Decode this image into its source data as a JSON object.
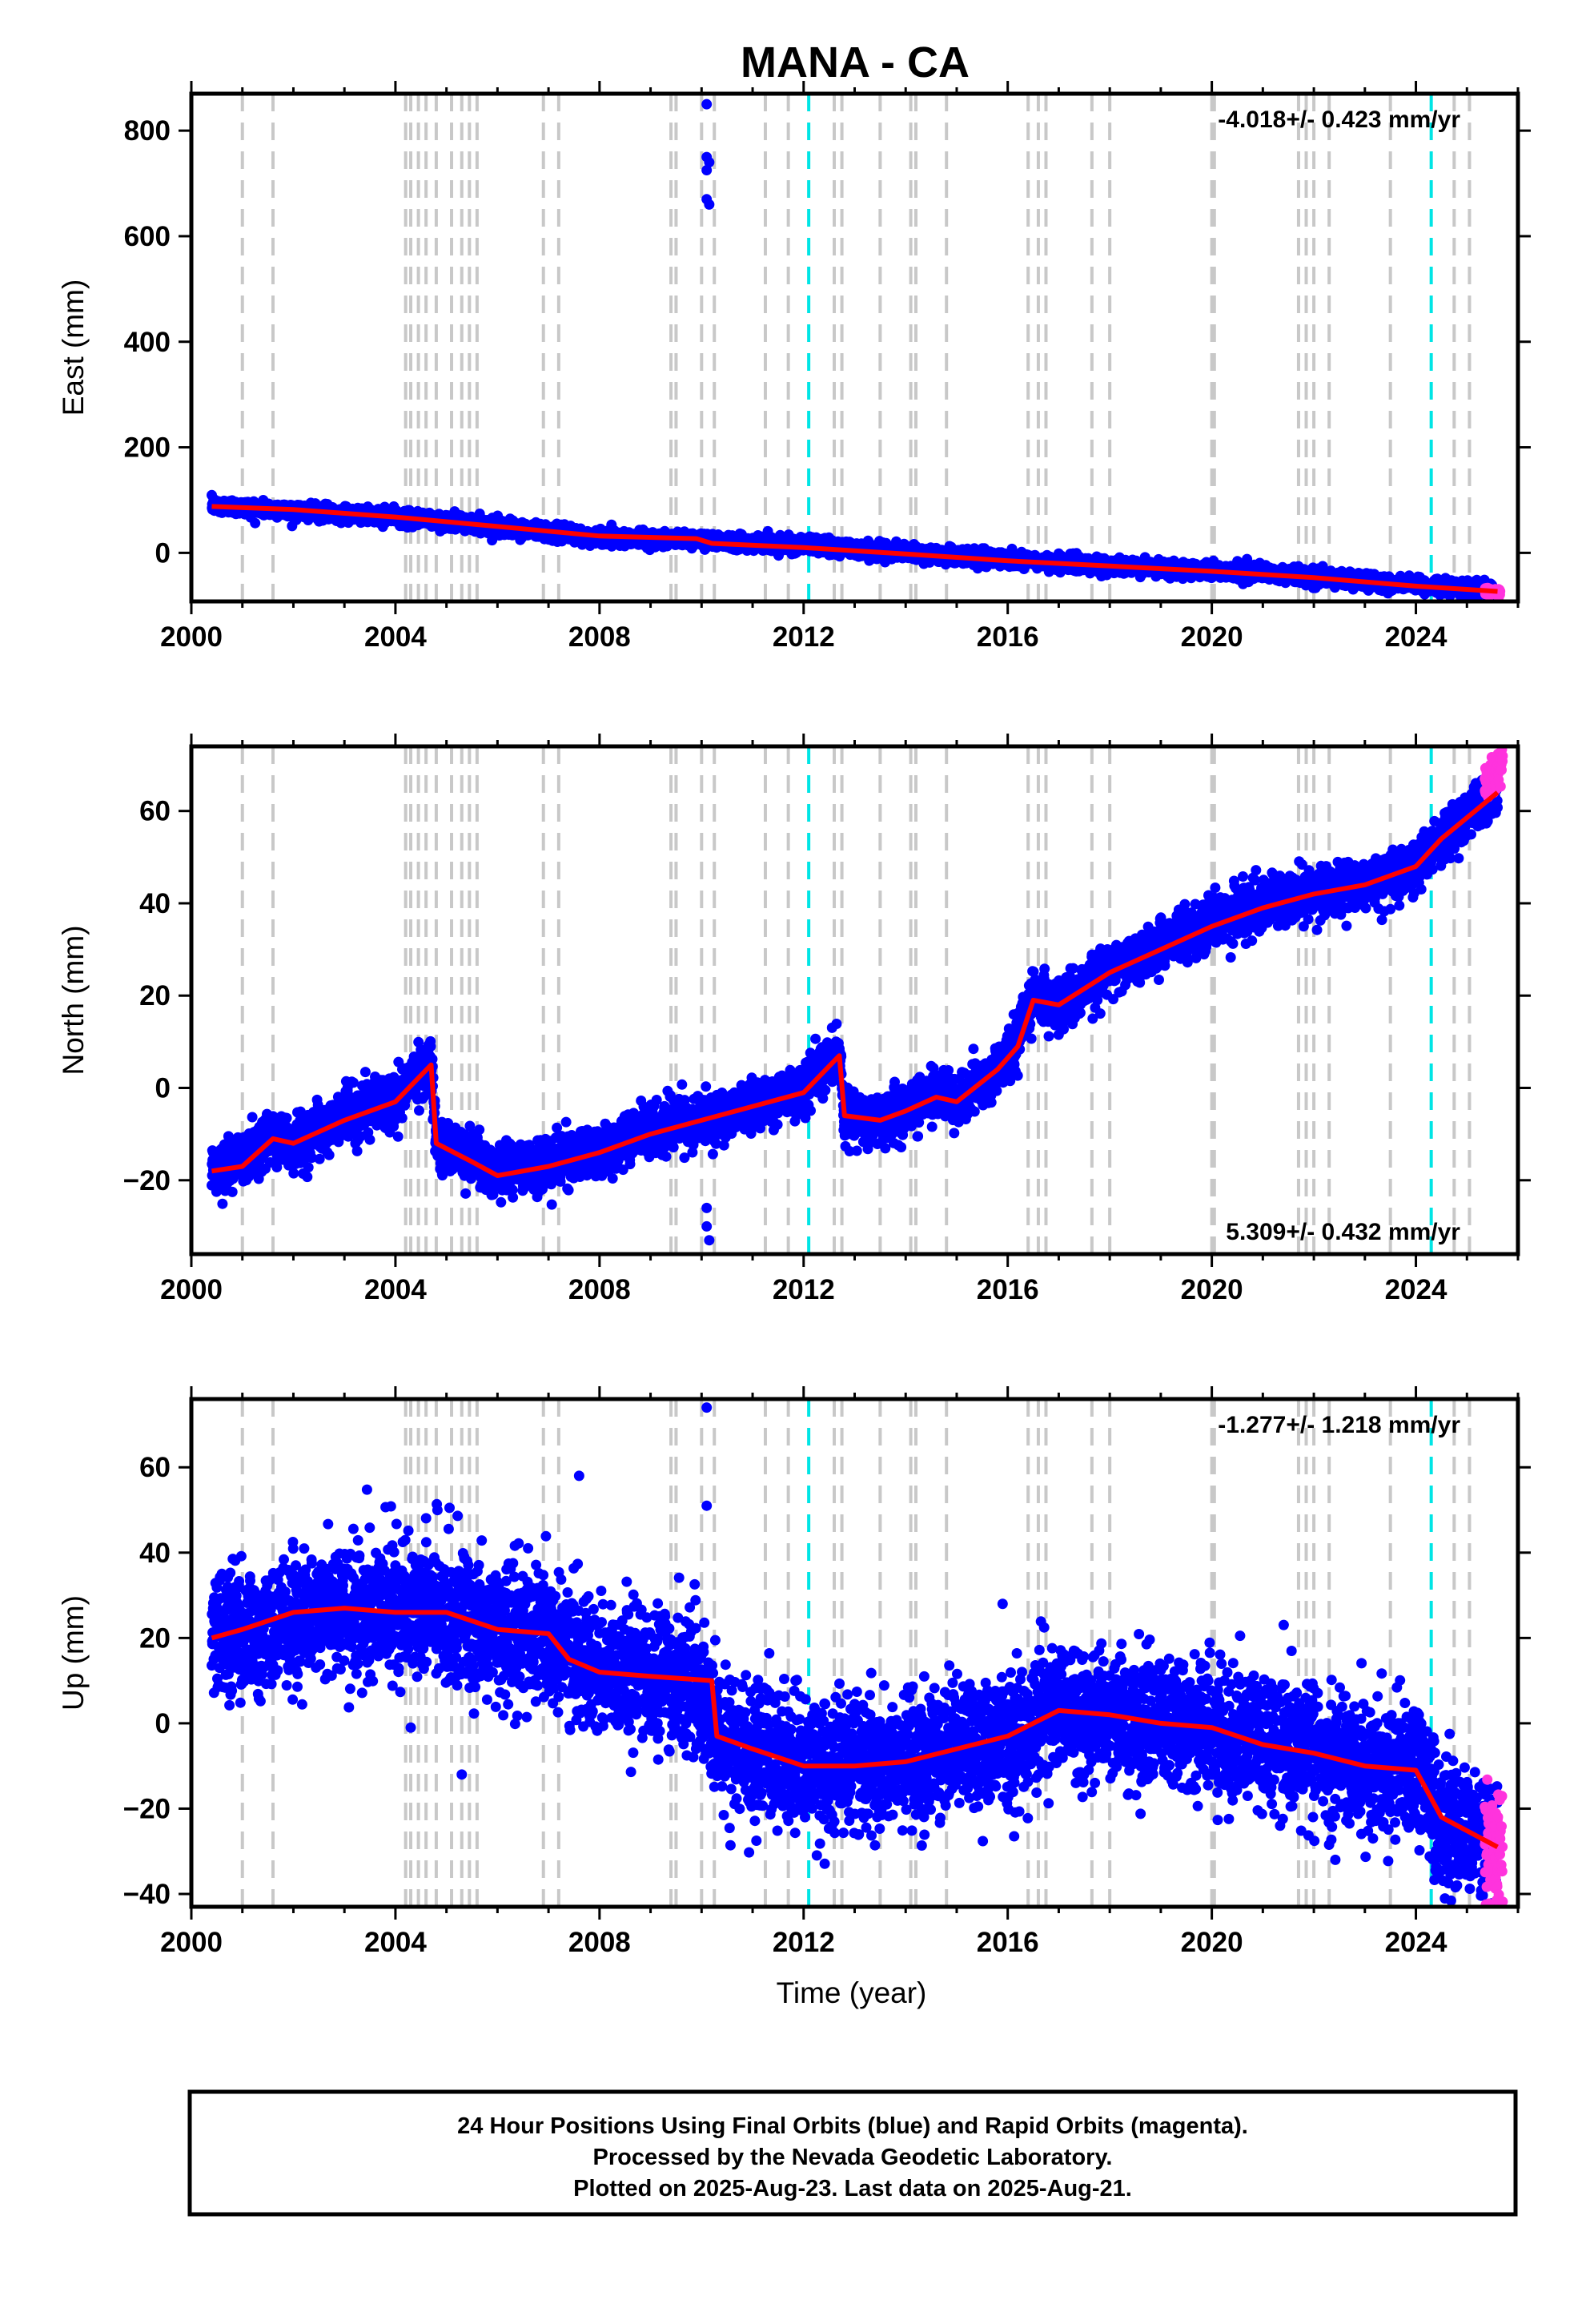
{
  "title": "MANA - CA",
  "footer": {
    "lines": [
      "24 Hour Positions Using Final Orbits (blue) and Rapid Orbits (magenta).",
      "Processed by the Nevada Geodetic Laboratory.",
      "Plotted on 2025-Aug-23. Last data on 2025-Aug-21."
    ]
  },
  "colors": {
    "final_orbits": "#0000ff",
    "rapid_orbits": "#ff33dd",
    "model": "#ff0000",
    "equipment_event": "#c8c8c8",
    "earthquake_event": "#00e5e5"
  },
  "chart_data": [
    {
      "type": "scatter",
      "component": "east",
      "ylabel": "East (mm)",
      "xlabel": "",
      "xlim": [
        2000,
        2026
      ],
      "ylim": [
        -92,
        870
      ],
      "x_ticks": [
        2000,
        2004,
        2008,
        2012,
        2016,
        2020,
        2024
      ],
      "y_ticks": [
        0,
        200,
        400,
        600,
        800
      ],
      "rate_label": "-4.018+/- 0.423 mm/yr",
      "rate_position": "top-right",
      "grid": false,
      "series": [
        {
          "kind": "points",
          "color": "final_orbits",
          "x": [
            2000.4,
            2002,
            2004,
            2006,
            2008,
            2010,
            2012,
            2014,
            2016,
            2018,
            2020,
            2022,
            2024,
            2025.5
          ],
          "y": [
            90,
            80,
            68,
            50,
            30,
            25,
            15,
            0,
            -12,
            -25,
            -33,
            -45,
            -62,
            -72
          ],
          "scatter_sd": 7,
          "outliers": [
            {
              "x": 2010.1,
              "y": 850
            },
            {
              "x": 2010.1,
              "y": 750
            },
            {
              "x": 2010.15,
              "y": 740
            },
            {
              "x": 2010.1,
              "y": 725
            },
            {
              "x": 2010.1,
              "y": 670
            },
            {
              "x": 2010.15,
              "y": 660
            }
          ]
        },
        {
          "kind": "points",
          "color": "rapid_orbits",
          "x": [
            2025.35,
            2025.65
          ],
          "y": [
            -72,
            -74
          ],
          "scatter_sd": 3
        },
        {
          "kind": "line",
          "color": "model",
          "x": [
            2000.4,
            2002,
            2004,
            2006,
            2008,
            2009.9,
            2010.2,
            2012,
            2014,
            2016,
            2018,
            2020,
            2022,
            2024,
            2025.6
          ],
          "y": [
            88,
            82,
            68,
            50,
            32,
            27,
            18,
            10,
            -2,
            -15,
            -25,
            -35,
            -47,
            -63,
            -73
          ]
        }
      ]
    },
    {
      "type": "scatter",
      "component": "north",
      "ylabel": "North (mm)",
      "xlabel": "",
      "xlim": [
        2000,
        2026
      ],
      "ylim": [
        -36,
        74
      ],
      "x_ticks": [
        2000,
        2004,
        2008,
        2012,
        2016,
        2020,
        2024
      ],
      "y_ticks": [
        -20,
        0,
        20,
        40,
        60
      ],
      "rate_label": "5.309+/- 0.432 mm/yr",
      "rate_position": "bottom-right",
      "grid": false,
      "series": [
        {
          "kind": "points",
          "color": "final_orbits",
          "x": [
            2000.4,
            2001,
            2001.6,
            2002,
            2003,
            2004,
            2004.7,
            2004.8,
            2005.5,
            2006,
            2007,
            2008,
            2009,
            2010,
            2011,
            2012,
            2012.7,
            2012.8,
            2013.5,
            2014,
            2014.6,
            2015,
            2015.8,
            2016.2,
            2016.5,
            2017,
            2018,
            2019,
            2020,
            2021,
            2022,
            2023,
            2024,
            2024.5,
            2025.6
          ],
          "y": [
            -18,
            -16,
            -10,
            -12,
            -6,
            -2,
            6,
            -12,
            -15,
            -18,
            -16,
            -14,
            -9,
            -7,
            -4,
            0,
            8,
            -6,
            -6,
            -5,
            -1,
            -3,
            4,
            10,
            20,
            18,
            26,
            31,
            36,
            40,
            42,
            44,
            48,
            54,
            65
          ],
          "scatter_sd": 2.6,
          "outliers": [
            {
              "x": 2010.1,
              "y": -26
            },
            {
              "x": 2010.1,
              "y": -30
            },
            {
              "x": 2010.15,
              "y": -33
            },
            {
              "x": 2021.8,
              "y": 35
            }
          ]
        },
        {
          "kind": "points",
          "color": "rapid_orbits",
          "x": [
            2025.35,
            2025.7
          ],
          "y": [
            66,
            70
          ],
          "scatter_sd": 2
        },
        {
          "kind": "line",
          "color": "model",
          "x": [
            2000.4,
            2001,
            2001.6,
            2002,
            2003,
            2004,
            2004.7,
            2004.8,
            2005.5,
            2006,
            2007,
            2008,
            2009,
            2010,
            2011,
            2012,
            2012.7,
            2012.8,
            2013.5,
            2014,
            2014.6,
            2015,
            2015.8,
            2016.2,
            2016.5,
            2017,
            2018,
            2019,
            2020,
            2021,
            2022,
            2023,
            2024,
            2024.5,
            2025.6
          ],
          "y": [
            -18,
            -17,
            -11,
            -12,
            -7,
            -3,
            5,
            -12,
            -16,
            -19,
            -17,
            -14,
            -10,
            -7,
            -4,
            -1,
            7,
            -6,
            -7,
            -5,
            -2,
            -3,
            4,
            9,
            19,
            18,
            25,
            30,
            35,
            39,
            42,
            44,
            48,
            54,
            64
          ]
        }
      ]
    },
    {
      "type": "scatter",
      "component": "up",
      "ylabel": "Up (mm)",
      "xlabel": "Time (year)",
      "xlim": [
        2000,
        2026
      ],
      "ylim": [
        -43,
        76
      ],
      "x_ticks": [
        2000,
        2004,
        2008,
        2012,
        2016,
        2020,
        2024
      ],
      "y_ticks": [
        -40,
        -20,
        0,
        20,
        40,
        60
      ],
      "rate_label": "-1.277+/- 1.218 mm/yr",
      "rate_position": "top-right",
      "grid": false,
      "series": [
        {
          "kind": "points",
          "color": "final_orbits",
          "x": [
            2000.4,
            2001,
            2002,
            2003,
            2004,
            2005,
            2006,
            2007,
            2007.4,
            2008,
            2009,
            2010,
            2010.3,
            2011,
            2012,
            2013,
            2014,
            2015,
            2016,
            2017,
            2018,
            2019,
            2020,
            2021,
            2022,
            2023,
            2024,
            2024.5,
            2025.6
          ],
          "y": [
            22,
            20,
            25,
            26,
            27,
            26,
            22,
            20,
            16,
            13,
            11,
            9,
            -3,
            -6,
            -10,
            -9,
            -8,
            -6,
            -3,
            3,
            2,
            0,
            -2,
            -5,
            -7,
            -10,
            -11,
            -22,
            -28
          ],
          "scatter_sd": 7.5,
          "outliers": [
            {
              "x": 2010.1,
              "y": 74
            },
            {
              "x": 2010.1,
              "y": 51
            },
            {
              "x": 2007.6,
              "y": 58
            },
            {
              "x": 2005.3,
              "y": -12
            },
            {
              "x": 2004.3,
              "y": -1
            },
            {
              "x": 2015.9,
              "y": 28
            }
          ]
        },
        {
          "kind": "points",
          "color": "rapid_orbits",
          "x": [
            2025.35,
            2025.7
          ],
          "y": [
            -28,
            -30
          ],
          "scatter_sd": 8
        },
        {
          "kind": "line",
          "color": "model",
          "x": [
            2000.4,
            2001,
            2002,
            2003,
            2004,
            2005,
            2006,
            2007,
            2007.4,
            2008,
            2009,
            2010.2,
            2010.3,
            2011,
            2012,
            2013,
            2014,
            2015,
            2016,
            2017,
            2018,
            2019,
            2020,
            2021,
            2022,
            2023,
            2024,
            2024.5,
            2025.6
          ],
          "y": [
            20,
            22,
            26,
            27,
            26,
            26,
            22,
            21,
            15,
            12,
            11,
            10,
            -3,
            -6,
            -10,
            -10,
            -9,
            -6,
            -3,
            3,
            2,
            0,
            -1,
            -5,
            -7,
            -10,
            -11,
            -22,
            -29
          ]
        }
      ]
    }
  ],
  "events": {
    "equipment": [
      2001.0,
      2001.6,
      2004.2,
      2004.3,
      2004.45,
      2004.6,
      2004.8,
      2005.1,
      2005.3,
      2005.45,
      2005.6,
      2006.9,
      2007.2,
      2009.4,
      2009.5,
      2010.0,
      2010.25,
      2011.25,
      2011.7,
      2012.6,
      2012.75,
      2013.5,
      2014.1,
      2014.2,
      2014.8,
      2016.4,
      2016.6,
      2016.75,
      2017.65,
      2018.0,
      2020.0,
      2020.05,
      2021.7,
      2021.85,
      2022.0,
      2022.3,
      2023.5,
      2024.75,
      2025.05
    ],
    "earthquake": [
      2012.1,
      2024.3
    ]
  }
}
